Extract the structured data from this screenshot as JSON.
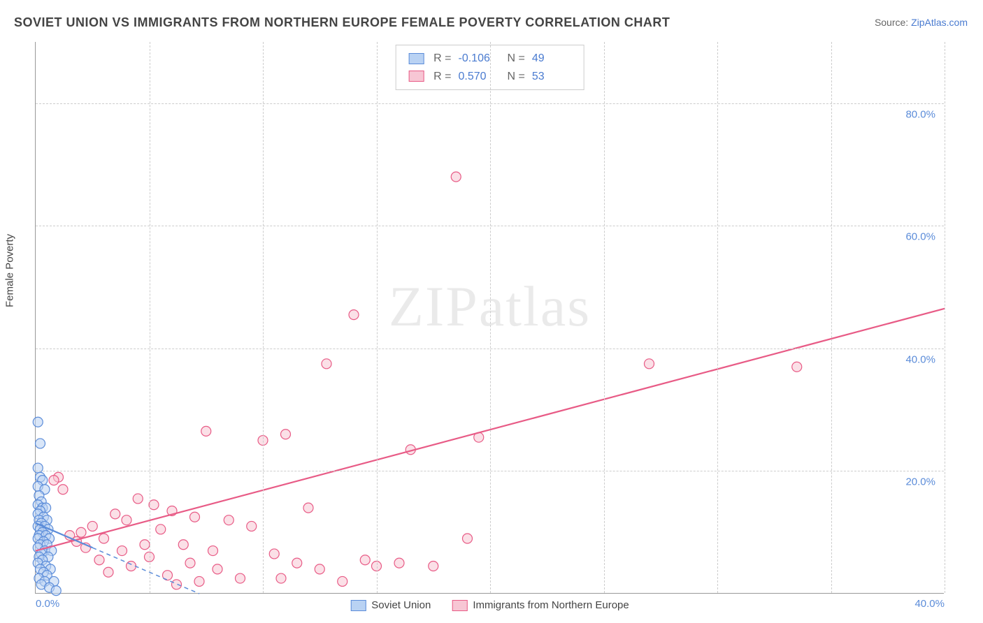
{
  "title": "SOVIET UNION VS IMMIGRANTS FROM NORTHERN EUROPE FEMALE POVERTY CORRELATION CHART",
  "source_label": "Source: ",
  "source_name": "ZipAtlas.com",
  "watermark": "ZIPatlas",
  "y_axis_label": "Female Poverty",
  "chart": {
    "type": "scatter",
    "background_color": "#ffffff",
    "grid_color": "#cccccc",
    "axis_color": "#999999",
    "tick_color": "#5b8cd9",
    "xlim": [
      0,
      40
    ],
    "ylim": [
      0,
      90
    ],
    "yticks": [
      20,
      40,
      60,
      80
    ],
    "ytick_labels": [
      "20.0%",
      "40.0%",
      "60.0%",
      "80.0%"
    ],
    "xticks": [
      0,
      40
    ],
    "xtick_labels": [
      "0.0%",
      "40.0%"
    ],
    "x_gridlines": [
      5,
      10,
      15,
      20,
      25,
      30,
      35,
      40
    ],
    "marker_radius": 7,
    "marker_stroke_width": 1.2,
    "trend_line_width_solid": 2.2,
    "trend_line_width_dashed": 1.5,
    "title_fontsize": 18,
    "label_fontsize": 15
  },
  "series": {
    "soviet": {
      "label": "Soviet Union",
      "fill": "#b9d2f3",
      "stroke": "#5b8cd9",
      "fill_opacity": 0.55,
      "R": "-0.106",
      "N": "49",
      "trend": {
        "x1": 0,
        "y1": 11.5,
        "x2": 7.2,
        "y2": 0,
        "dashed_extension": true
      },
      "points": [
        [
          0.1,
          28.0
        ],
        [
          0.2,
          24.5
        ],
        [
          0.1,
          20.5
        ],
        [
          0.2,
          19.0
        ],
        [
          0.3,
          18.5
        ],
        [
          0.1,
          17.5
        ],
        [
          0.4,
          17.0
        ],
        [
          0.15,
          16.0
        ],
        [
          0.25,
          15.0
        ],
        [
          0.1,
          14.5
        ],
        [
          0.3,
          14.0
        ],
        [
          0.45,
          14.0
        ],
        [
          0.2,
          13.5
        ],
        [
          0.1,
          13.0
        ],
        [
          0.35,
          12.5
        ],
        [
          0.15,
          12.0
        ],
        [
          0.5,
          12.0
        ],
        [
          0.25,
          11.5
        ],
        [
          0.1,
          11.0
        ],
        [
          0.4,
          11.0
        ],
        [
          0.2,
          10.5
        ],
        [
          0.55,
          10.5
        ],
        [
          0.3,
          10.0
        ],
        [
          0.15,
          9.5
        ],
        [
          0.45,
          9.5
        ],
        [
          0.1,
          9.0
        ],
        [
          0.6,
          9.0
        ],
        [
          0.35,
          8.5
        ],
        [
          0.2,
          8.0
        ],
        [
          0.5,
          8.0
        ],
        [
          0.1,
          7.5
        ],
        [
          0.4,
          7.0
        ],
        [
          0.7,
          7.0
        ],
        [
          0.25,
          6.5
        ],
        [
          0.15,
          6.0
        ],
        [
          0.55,
          6.0
        ],
        [
          0.3,
          5.5
        ],
        [
          0.1,
          5.0
        ],
        [
          0.45,
          4.5
        ],
        [
          0.2,
          4.0
        ],
        [
          0.65,
          4.0
        ],
        [
          0.35,
          3.5
        ],
        [
          0.5,
          3.0
        ],
        [
          0.15,
          2.5
        ],
        [
          0.4,
          2.0
        ],
        [
          0.8,
          2.0
        ],
        [
          0.25,
          1.5
        ],
        [
          0.6,
          1.0
        ],
        [
          0.9,
          0.5
        ]
      ]
    },
    "northern": {
      "label": "Immigrants from Northern Europe",
      "fill": "#f7c6d4",
      "stroke": "#e85b86",
      "fill_opacity": 0.55,
      "R": "0.570",
      "N": "53",
      "trend": {
        "x1": 0,
        "y1": 7.0,
        "x2": 40,
        "y2": 46.5,
        "dashed_extension": false
      },
      "points": [
        [
          18.5,
          68.0
        ],
        [
          14.0,
          45.5
        ],
        [
          12.8,
          37.5
        ],
        [
          27.0,
          37.5
        ],
        [
          33.5,
          37.0
        ],
        [
          7.5,
          26.5
        ],
        [
          11.0,
          26.0
        ],
        [
          10.0,
          25.0
        ],
        [
          19.5,
          25.5
        ],
        [
          16.5,
          23.5
        ],
        [
          1.0,
          19.0
        ],
        [
          1.2,
          17.0
        ],
        [
          0.8,
          18.5
        ],
        [
          4.5,
          15.5
        ],
        [
          5.2,
          14.5
        ],
        [
          3.5,
          13.0
        ],
        [
          6.0,
          13.5
        ],
        [
          7.0,
          12.5
        ],
        [
          4.0,
          12.0
        ],
        [
          12.0,
          14.0
        ],
        [
          8.5,
          12.0
        ],
        [
          2.5,
          11.0
        ],
        [
          5.5,
          10.5
        ],
        [
          2.0,
          10.0
        ],
        [
          1.5,
          9.5
        ],
        [
          3.0,
          9.0
        ],
        [
          9.5,
          11.0
        ],
        [
          1.8,
          8.5
        ],
        [
          4.8,
          8.0
        ],
        [
          6.5,
          8.0
        ],
        [
          19.0,
          9.0
        ],
        [
          2.2,
          7.5
        ],
        [
          3.8,
          7.0
        ],
        [
          7.8,
          7.0
        ],
        [
          10.5,
          6.5
        ],
        [
          5.0,
          6.0
        ],
        [
          2.8,
          5.5
        ],
        [
          16.0,
          5.0
        ],
        [
          14.5,
          5.5
        ],
        [
          6.8,
          5.0
        ],
        [
          11.5,
          5.0
        ],
        [
          4.2,
          4.5
        ],
        [
          8.0,
          4.0
        ],
        [
          3.2,
          3.5
        ],
        [
          15.0,
          4.5
        ],
        [
          12.5,
          4.0
        ],
        [
          17.5,
          4.5
        ],
        [
          5.8,
          3.0
        ],
        [
          9.0,
          2.5
        ],
        [
          7.2,
          2.0
        ],
        [
          10.8,
          2.5
        ],
        [
          13.5,
          2.0
        ],
        [
          6.2,
          1.5
        ]
      ]
    }
  },
  "legend_stats": {
    "r_label": "R = ",
    "n_label": "N = "
  }
}
